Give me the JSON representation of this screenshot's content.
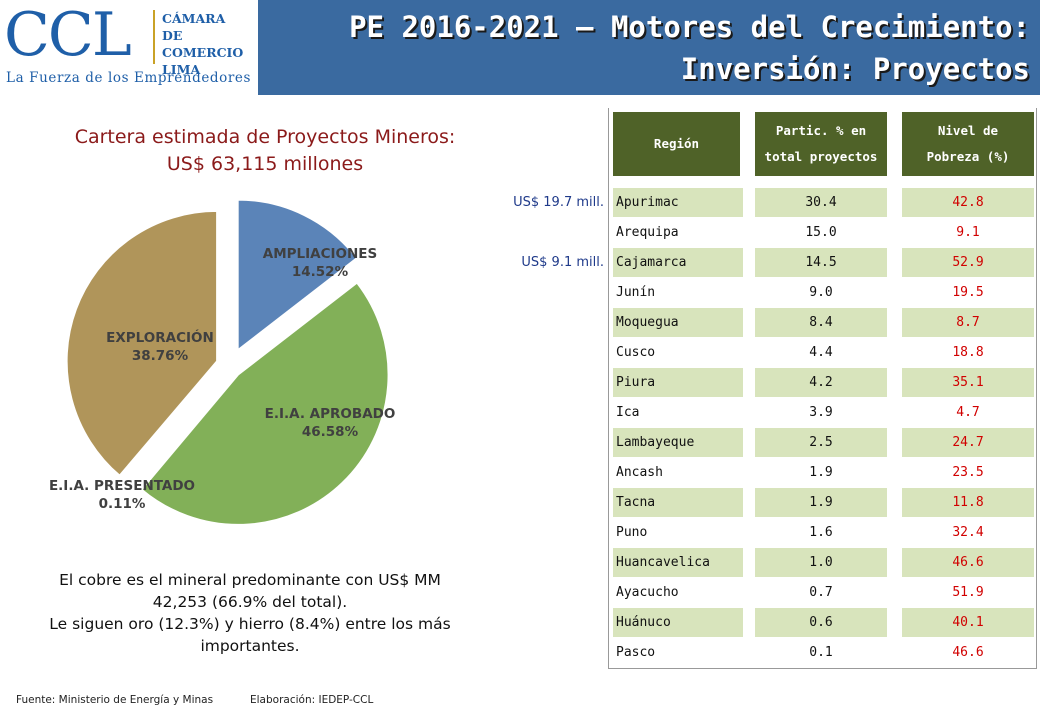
{
  "logo": {
    "ccl": "CCL",
    "org_lines": [
      "CÁMARA",
      "DE COMERCIO",
      "LIMA"
    ],
    "tagline": "La Fuerza de los Emprendedores"
  },
  "header": {
    "title_line1": "PE 2016-2021 – Motores del Crecimiento:",
    "title_line2": "Inversión: Proyectos"
  },
  "subtitle_line1": "Cartera estimada de Proyectos Mineros:",
  "subtitle_line2": "US$ 63,115 millones",
  "chart_data": {
    "type": "pie",
    "title": "Cartera estimada de Proyectos Mineros: US$ 63,115 millones",
    "slices": [
      {
        "label": "AMPLIACIONES",
        "value": 14.52,
        "value_label": "14.52%",
        "color": "#5b84b8"
      },
      {
        "label": "E.I.A. APROBADO",
        "value": 46.58,
        "value_label": "46.58%",
        "color": "#82b058"
      },
      {
        "label": "E.I.A. PRESENTADO",
        "value": 0.11,
        "value_label": "0.11%",
        "color": "#d6d6d6"
      },
      {
        "label": "EXPLORACIÓN",
        "value": 38.76,
        "value_label": "38.76%",
        "color": "#b0955a"
      }
    ]
  },
  "summary": {
    "line1": "El cobre es el mineral predominante con US$ MM",
    "line2": "42,253 (66.9% del total).",
    "line3": "Le siguen oro (12.3%) y hierro (8.4%) entre los más",
    "line4": "importantes."
  },
  "footer": {
    "source": "Fuente: Ministerio de Energía y Minas",
    "elaboration": "Elaboración: IEDEP-CCL"
  },
  "annotations": [
    {
      "text": "US$ 19.7 mill.",
      "row": 0
    },
    {
      "text": "US$  9.1 mill.",
      "row": 2
    }
  ],
  "table": {
    "headers": [
      "Región",
      "Partic. % en total proyectos",
      "Nivel de Pobreza (%)"
    ],
    "header_lines": [
      [
        "Región"
      ],
      [
        "Partic. % en",
        "total proyectos"
      ],
      [
        "Nivel de",
        "Pobreza (%)"
      ]
    ],
    "rows": [
      {
        "region": "Apurimac",
        "particip": "30.4",
        "pobreza": "42.8"
      },
      {
        "region": "Arequipa",
        "particip": "15.0",
        "pobreza": "9.1"
      },
      {
        "region": "Cajamarca",
        "particip": "14.5",
        "pobreza": "52.9"
      },
      {
        "region": "Junín",
        "particip": "9.0",
        "pobreza": "19.5"
      },
      {
        "region": "Moquegua",
        "particip": "8.4",
        "pobreza": "8.7"
      },
      {
        "region": "Cusco",
        "particip": "4.4",
        "pobreza": "18.8"
      },
      {
        "region": "Piura",
        "particip": "4.2",
        "pobreza": "35.1"
      },
      {
        "region": "Ica",
        "particip": "3.9",
        "pobreza": "4.7"
      },
      {
        "region": "Lambayeque",
        "particip": "2.5",
        "pobreza": "24.7"
      },
      {
        "region": "Ancash",
        "particip": "1.9",
        "pobreza": "23.5"
      },
      {
        "region": "Tacna",
        "particip": "1.9",
        "pobreza": "11.8"
      },
      {
        "region": "Puno",
        "particip": "1.6",
        "pobreza": "32.4"
      },
      {
        "region": "Huancavelica",
        "particip": "1.0",
        "pobreza": "46.6"
      },
      {
        "region": "Ayacucho",
        "particip": "0.7",
        "pobreza": "51.9"
      },
      {
        "region": "Huánuco",
        "particip": "0.6",
        "pobreza": "40.1"
      },
      {
        "region": "Pasco",
        "particip": "0.1",
        "pobreza": "46.6"
      }
    ]
  }
}
